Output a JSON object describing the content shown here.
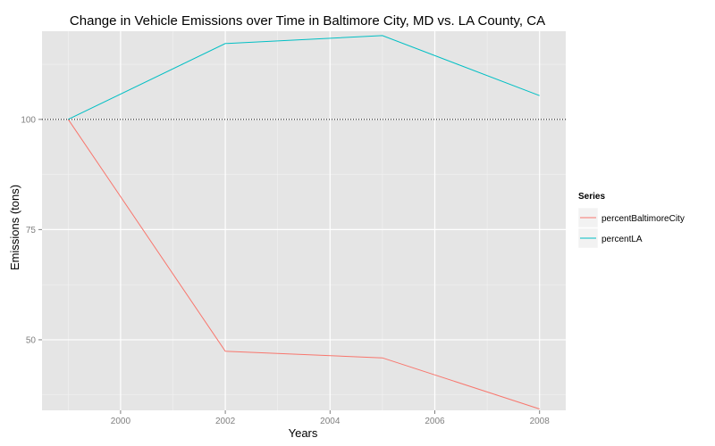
{
  "chart_data": {
    "type": "line",
    "title": "Change in Vehicle Emissions over Time in Baltimore City, MD vs. LA County, CA",
    "xlabel": "Years",
    "ylabel": "Emissions (tons)",
    "x": [
      1999,
      2002,
      2005,
      2008
    ],
    "xlim": [
      1998.5,
      2008.5
    ],
    "ylim": [
      34,
      120
    ],
    "xticks": [
      2000,
      2002,
      2004,
      2006,
      2008
    ],
    "yticks": [
      50,
      75,
      100
    ],
    "grid": true,
    "legend": {
      "title": "Series",
      "position": "right"
    },
    "reference_line": {
      "y": 100,
      "style": "dotted",
      "color": "#000000"
    },
    "series": [
      {
        "name": "percentBaltimoreCity",
        "color": "#F8766D",
        "values": [
          100,
          47.4,
          45.9,
          34.3
        ]
      },
      {
        "name": "percentLA",
        "color": "#00BFC4",
        "values": [
          100,
          117.2,
          119.0,
          105.4
        ]
      }
    ],
    "colors": {
      "panel": "#E5E5E5",
      "grid_major": "#FFFFFF",
      "grid_minor": "#F2F2F2",
      "tick_text": "#7F7F7F"
    }
  }
}
